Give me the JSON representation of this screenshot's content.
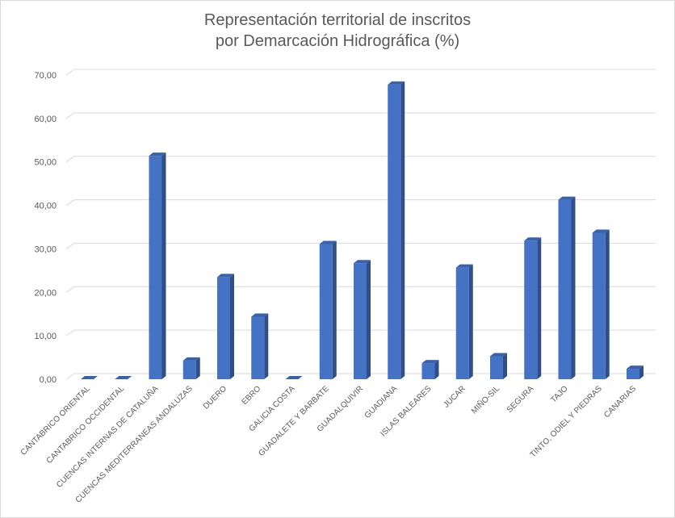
{
  "chart_data": {
    "type": "bar",
    "title_line1": "Representación territorial de inscritos",
    "title_line2": "por Demarcación Hidrográfica (%)",
    "xlabel": "",
    "ylabel": "",
    "ylim": [
      0,
      70
    ],
    "yticks": [
      "0,00",
      "10,00",
      "20,00",
      "30,00",
      "40,00",
      "50,00",
      "60,00",
      "70,00"
    ],
    "grid": true,
    "style": "3d-column",
    "bar_color": "#4472C4",
    "bar_side_color": "#2F4F86",
    "categories": [
      "CANTABRICO ORIENTAL",
      "CANTABRICO OCCIDENTAL",
      "CUENCAS INTERNAS DE CATALUÑA",
      "CUENCAS MEDITERRANEAS ANDALUZAS",
      "DUERO",
      "EBRO",
      "GALICIA COSTA",
      "GUADALETE Y BARBATE",
      "GUADALQUIVIR",
      "GUADIANA",
      "ISLAS BALEARES",
      "JUCAR",
      "MIÑO-SIL",
      "SEGURA",
      "TAJO",
      "TINTO, ODIEL Y PIEDRAS",
      "CANARIAS"
    ],
    "values": [
      0,
      0,
      51.4,
      4.3,
      23.5,
      14.4,
      0,
      31.1,
      26.7,
      67.8,
      3.7,
      25.7,
      5.3,
      31.9,
      41.3,
      33.7,
      2.4
    ]
  }
}
